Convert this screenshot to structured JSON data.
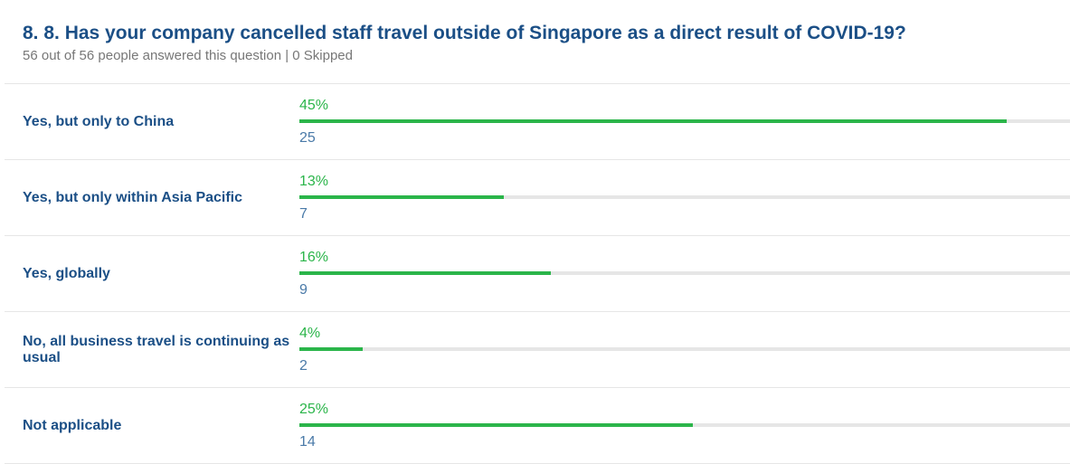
{
  "chart_data": {
    "type": "bar",
    "title": "8. 8. Has your company cancelled staff travel outside of Singapore as a direct result of COVID-19?",
    "subtitle": "56 out of 56 people answered this question | 0 Skipped",
    "categories": [
      "Yes, but only to China",
      "Yes, but only within Asia Pacific",
      "Yes, globally",
      "No, all business travel is continuing as usual",
      "Not applicable"
    ],
    "values": [
      45,
      13,
      16,
      4,
      25
    ],
    "value_labels": [
      "45%",
      "13%",
      "16%",
      "4%",
      "25%"
    ],
    "counts": [
      25,
      7,
      9,
      2,
      14
    ],
    "color": "#2bb54a",
    "xlim": [
      0,
      49
    ]
  }
}
